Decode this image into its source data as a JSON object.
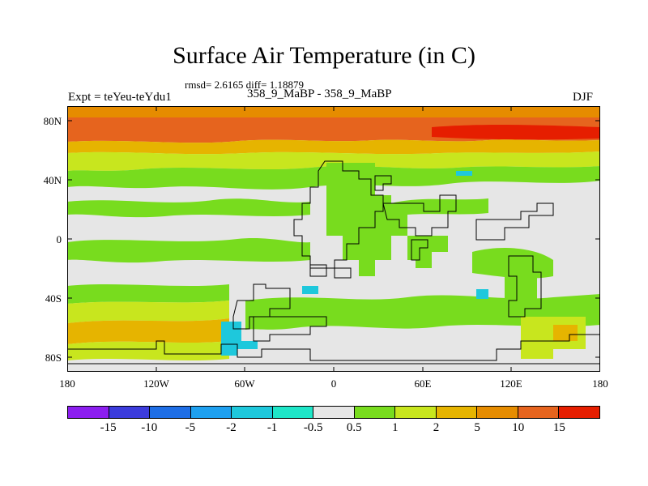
{
  "title": "Surface Air Temperature (in C)",
  "stats": "rmsd= 2.6165 diff= 1.18879",
  "left_label": "Expt = teYeu-teYdu1",
  "subtitle": "358_9_MaBP - 358_9_MaBP",
  "season": "DJF",
  "y_ticks": [
    "80N",
    "40N",
    "0",
    "40S",
    "80S"
  ],
  "x_ticks": [
    "180",
    "120W",
    "60W",
    "0",
    "60E",
    "120E",
    "180"
  ],
  "colorbar": {
    "colors": [
      "#8c1ef0",
      "#3c3cdc",
      "#1e6ee6",
      "#1ea0f0",
      "#1ec8dc",
      "#1ee6c8",
      "#e6e6e6",
      "#78dc1e",
      "#c8e61e",
      "#e6b400",
      "#e68c00",
      "#e6641e",
      "#e61e00"
    ],
    "labels": [
      "-15",
      "-10",
      "-5",
      "-2",
      "-1",
      "-0.5",
      "0.5",
      "1",
      "2",
      "5",
      "10",
      "15"
    ]
  },
  "legend_colors": {
    "neutral": "#e6e6e6",
    "warm1": "#78dc1e",
    "warm2": "#c8e61e",
    "warm5": "#e6b400",
    "warm10": "#e68c00",
    "warm15": "#e6641e",
    "warm_max": "#e61e00",
    "cool": "#1ec8dc"
  }
}
